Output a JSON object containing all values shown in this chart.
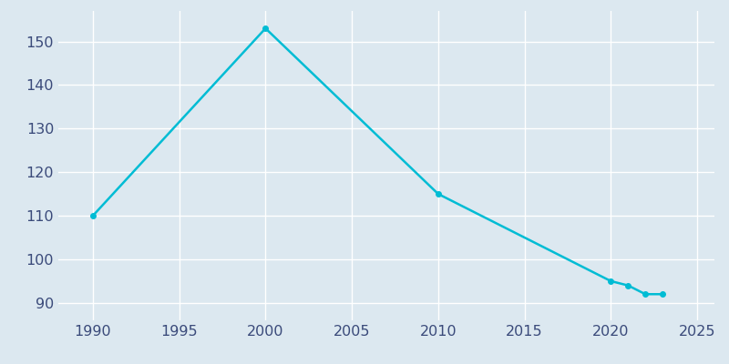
{
  "years": [
    1990,
    2000,
    2010,
    2020,
    2021,
    2022,
    2023
  ],
  "population": [
    110,
    153,
    115,
    95,
    94,
    92,
    92
  ],
  "line_color": "#00bcd4",
  "marker": "o",
  "marker_size": 4,
  "line_width": 1.8,
  "bg_color": "#dce8f0",
  "plot_bg_color": "#dce8f0",
  "grid_color": "#ffffff",
  "xlim": [
    1988,
    2026
  ],
  "ylim": [
    86,
    157
  ],
  "xticks": [
    1990,
    1995,
    2000,
    2005,
    2010,
    2015,
    2020,
    2025
  ],
  "yticks": [
    90,
    100,
    110,
    120,
    130,
    140,
    150
  ],
  "tick_color": "#3a4a7a",
  "tick_fontsize": 11.5
}
